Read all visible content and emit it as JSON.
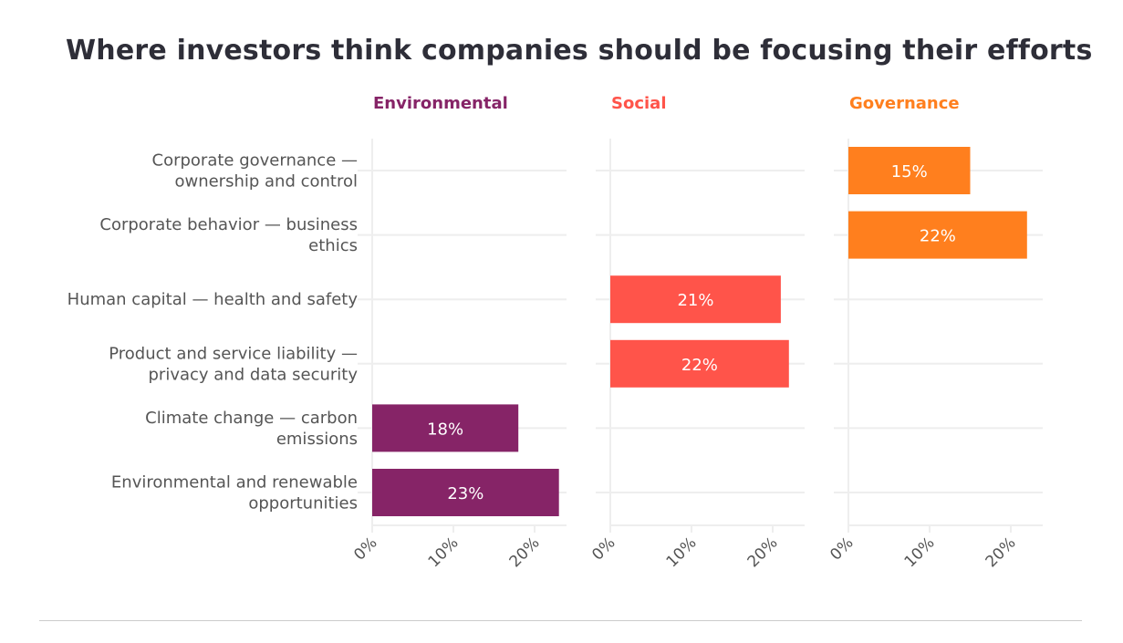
{
  "chart_data": {
    "type": "bar",
    "orientation": "horizontal",
    "title": "Where investors think companies should be focusing their efforts",
    "categories": [
      [
        "Corporate governance —",
        "ownership and control"
      ],
      [
        "Corporate behavior — business",
        "ethics"
      ],
      [
        "Human capital — health and safety"
      ],
      [
        "Product and service liability —",
        "privacy and data security"
      ],
      [
        "Climate change — carbon",
        "emissions"
      ],
      [
        "Environmental and renewable",
        "opportunities"
      ]
    ],
    "panels": [
      {
        "name": "Environmental",
        "color": "#862467",
        "values": [
          null,
          null,
          null,
          null,
          18,
          23
        ],
        "labels": [
          "",
          "",
          "",
          "",
          "18%",
          "23%"
        ]
      },
      {
        "name": "Social",
        "color": "#ff544a",
        "values": [
          null,
          null,
          21,
          22,
          null,
          null
        ],
        "labels": [
          "",
          "",
          "21%",
          "22%",
          "",
          ""
        ]
      },
      {
        "name": "Governance",
        "color": "#ff7f1e",
        "values": [
          15,
          22,
          null,
          null,
          null,
          null
        ],
        "labels": [
          "15%",
          "22%",
          "",
          "",
          "",
          ""
        ]
      }
    ],
    "xticks": [
      "0%",
      "10%",
      "20%"
    ],
    "xtick_values": [
      0,
      10,
      20
    ],
    "xlim": [
      0,
      24
    ],
    "grid": true,
    "legend": "none"
  }
}
